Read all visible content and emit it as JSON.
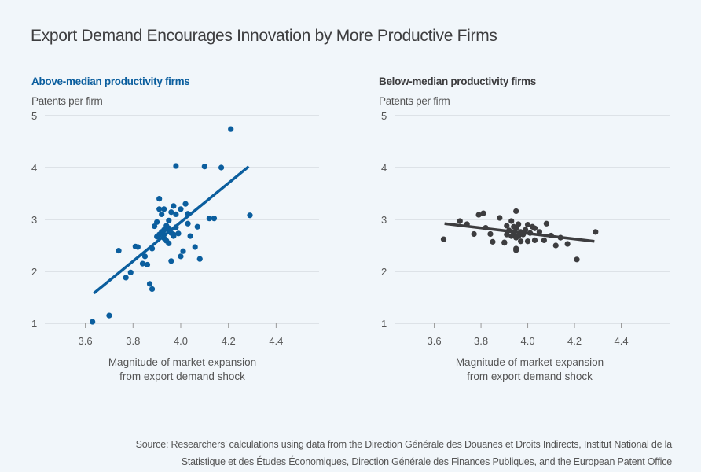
{
  "title": "Export Demand Encourages Innovation by More Productive Firms",
  "source_line1": "Source: Researchers’ calculations using data from the Direction Générale des Douanes et Droits Indirects, Institut National de la",
  "source_line2": "Statistique et des Études Économiques, Direction Générale des Finances Publiques, and the European Patent Office",
  "colors": {
    "above": "#0b5e9e",
    "below": "#3d3d3f",
    "grid": "#c9ced4",
    "background": "#f1f6fa"
  },
  "chart_data": [
    {
      "type": "scatter",
      "title": "Above-median productivity firms",
      "ylabel": "Patents per firm",
      "xlabel_line1": "Magnitude of market expansion",
      "xlabel_line2": "from export demand shock",
      "xlim": [
        3.43,
        4.58
      ],
      "ylim": [
        1,
        5
      ],
      "xticks": [
        3.6,
        3.8,
        4.0,
        4.2,
        4.4
      ],
      "xtick_labels": [
        "3.6",
        "3.8",
        "4.0",
        "4.2",
        "4.4"
      ],
      "yticks": [
        1,
        2,
        3,
        4,
        5
      ],
      "ytick_labels": [
        "1",
        "2",
        "3",
        "4",
        "5"
      ],
      "grid": "horizontal",
      "fit_line": {
        "x": [
          3.636,
          4.285
        ],
        "y": [
          1.58,
          4.02
        ]
      },
      "points": [
        [
          3.63,
          1.03
        ],
        [
          3.7,
          1.15
        ],
        [
          3.74,
          2.4
        ],
        [
          3.81,
          2.48
        ],
        [
          3.82,
          2.47
        ],
        [
          3.88,
          2.44
        ],
        [
          3.85,
          2.29
        ],
        [
          3.84,
          2.15
        ],
        [
          3.86,
          2.13
        ],
        [
          3.79,
          1.98
        ],
        [
          3.77,
          1.88
        ],
        [
          3.87,
          1.76
        ],
        [
          3.88,
          1.66
        ],
        [
          3.91,
          3.4
        ],
        [
          3.91,
          3.2
        ],
        [
          3.93,
          3.2
        ],
        [
          3.97,
          3.26
        ],
        [
          4.0,
          3.2
        ],
        [
          4.02,
          3.3
        ],
        [
          3.92,
          3.1
        ],
        [
          3.96,
          3.14
        ],
        [
          3.98,
          3.1
        ],
        [
          3.9,
          2.95
        ],
        [
          3.89,
          2.87
        ],
        [
          3.95,
          2.98
        ],
        [
          4.03,
          3.11
        ],
        [
          4.03,
          2.92
        ],
        [
          4.07,
          2.86
        ],
        [
          3.9,
          2.67
        ],
        [
          3.97,
          2.68
        ],
        [
          3.95,
          2.54
        ],
        [
          4.04,
          2.68
        ],
        [
          4.06,
          2.47
        ],
        [
          4.01,
          2.39
        ],
        [
          4.0,
          2.29
        ],
        [
          3.96,
          2.2
        ],
        [
          4.08,
          2.24
        ],
        [
          4.21,
          4.74
        ],
        [
          3.98,
          4.03
        ],
        [
          4.1,
          4.02
        ],
        [
          4.17,
          4.0
        ],
        [
          4.29,
          3.08
        ],
        [
          4.12,
          3.02
        ],
        [
          4.14,
          3.02
        ],
        [
          3.92,
          2.76
        ],
        [
          3.93,
          2.71
        ],
        [
          3.95,
          2.79
        ],
        [
          3.96,
          2.74
        ],
        [
          3.93,
          2.64
        ],
        [
          3.94,
          2.59
        ],
        [
          3.95,
          2.83
        ],
        [
          3.91,
          2.71
        ],
        [
          3.97,
          2.71
        ],
        [
          3.93,
          2.8
        ],
        [
          3.99,
          2.73
        ],
        [
          3.94,
          2.88
        ],
        [
          3.98,
          2.85
        ]
      ]
    },
    {
      "type": "scatter",
      "title": "Below-median productivity firms",
      "ylabel": "Patents per firm",
      "xlabel_line1": "Magnitude of market expansion",
      "xlabel_line2": "from export demand shock",
      "xlim": [
        3.43,
        4.61
      ],
      "ylim": [
        1,
        5
      ],
      "xticks": [
        3.6,
        3.8,
        4.0,
        4.2,
        4.4
      ],
      "xtick_labels": [
        "3.6",
        "3.8",
        "4.0",
        "4.2",
        "4.4"
      ],
      "yticks": [
        1,
        2,
        3,
        4,
        5
      ],
      "ytick_labels": [
        "1",
        "2",
        "3",
        "4",
        "5"
      ],
      "grid": "horizontal",
      "fit_line": {
        "x": [
          3.644,
          4.285
        ],
        "y": [
          2.92,
          2.58
        ]
      },
      "points": [
        [
          3.64,
          2.62
        ],
        [
          3.71,
          2.97
        ],
        [
          3.74,
          2.91
        ],
        [
          3.79,
          3.09
        ],
        [
          3.81,
          3.12
        ],
        [
          3.88,
          3.03
        ],
        [
          3.77,
          2.72
        ],
        [
          3.84,
          2.72
        ],
        [
          3.82,
          2.84
        ],
        [
          3.85,
          2.57
        ],
        [
          3.9,
          2.55
        ],
        [
          3.95,
          3.16
        ],
        [
          3.93,
          2.97
        ],
        [
          3.91,
          2.88
        ],
        [
          4.0,
          2.9
        ],
        [
          4.02,
          2.86
        ],
        [
          4.03,
          2.83
        ],
        [
          4.08,
          2.92
        ],
        [
          4.05,
          2.76
        ],
        [
          4.1,
          2.69
        ],
        [
          4.14,
          2.65
        ],
        [
          4.29,
          2.76
        ],
        [
          3.9,
          2.56
        ],
        [
          3.95,
          2.44
        ],
        [
          3.95,
          2.41
        ],
        [
          3.97,
          2.58
        ],
        [
          4.0,
          2.58
        ],
        [
          4.03,
          2.6
        ],
        [
          4.07,
          2.6
        ],
        [
          4.12,
          2.5
        ],
        [
          4.17,
          2.53
        ],
        [
          4.21,
          2.23
        ],
        [
          3.92,
          2.79
        ],
        [
          3.94,
          2.74
        ],
        [
          3.95,
          2.83
        ],
        [
          3.97,
          2.76
        ],
        [
          3.93,
          2.68
        ],
        [
          3.95,
          2.65
        ],
        [
          3.96,
          2.91
        ],
        [
          3.98,
          2.71
        ],
        [
          3.91,
          2.71
        ],
        [
          3.94,
          2.86
        ],
        [
          3.99,
          2.8
        ],
        [
          3.96,
          2.68
        ],
        [
          4.01,
          2.74
        ]
      ]
    }
  ]
}
